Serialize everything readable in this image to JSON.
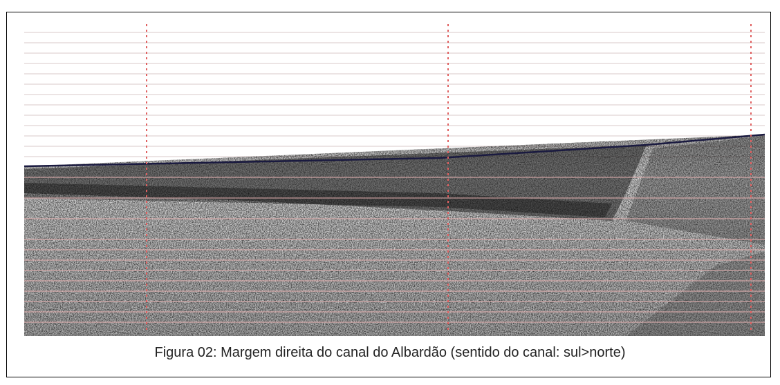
{
  "figure": {
    "caption": "Figura 02: Margem direita do canal do Albardão (sentido do canal: sul>norte)"
  }
}
